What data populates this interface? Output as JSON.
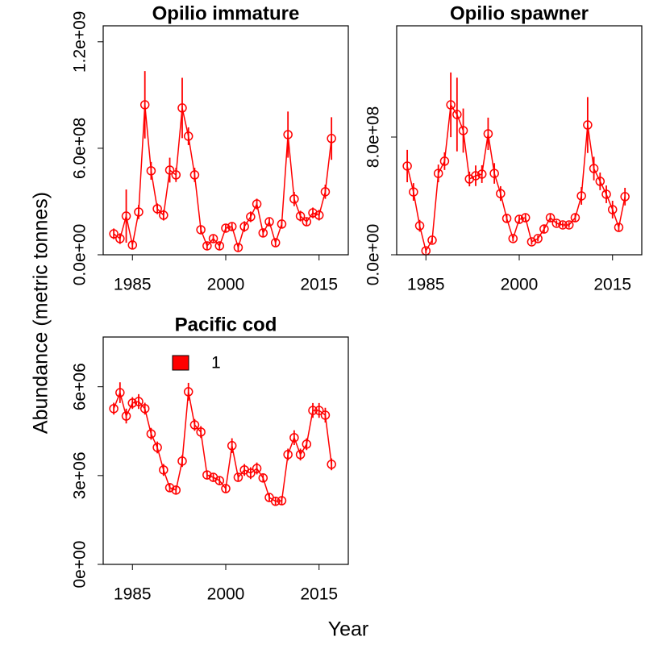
{
  "ylabel": "Abundance (metric tonnes)",
  "xlabel": "Year",
  "chart_data": [
    {
      "type": "line",
      "title": "Opilio immature",
      "x": [
        1982,
        1983,
        1984,
        1985,
        1986,
        1987,
        1988,
        1989,
        1990,
        1991,
        1992,
        1993,
        1994,
        1995,
        1996,
        1997,
        1998,
        1999,
        2000,
        2001,
        2002,
        2003,
        2004,
        2005,
        2006,
        2007,
        2008,
        2009,
        2010,
        2011,
        2012,
        2013,
        2014,
        2015,
        2016,
        2017
      ],
      "xlim": [
        1980.3,
        2019.7
      ],
      "xticks": [
        1985,
        2000,
        2015
      ],
      "ylim": [
        0,
        1290000000
      ],
      "yticks": [
        {
          "value": 0,
          "label": "0.0e+00"
        },
        {
          "value": 600000000,
          "label": "6.0e+08"
        },
        {
          "value": 1200000000,
          "label": "1.2e+09"
        }
      ],
      "series": [
        {
          "color": "#ff0000",
          "values": [
            118000000,
            91000000,
            218000000,
            55000000,
            241000000,
            845000000,
            473000000,
            259000000,
            223000000,
            477000000,
            450000000,
            827000000,
            668000000,
            450000000,
            141000000,
            50000000,
            91000000,
            50000000,
            150000000,
            159000000,
            41000000,
            159000000,
            214000000,
            286000000,
            123000000,
            186000000,
            68000000,
            173000000,
            677000000,
            314000000,
            218000000,
            186000000,
            236000000,
            223000000,
            355000000,
            655000000
          ],
          "errors": [
            30000000,
            30000000,
            150000000,
            20000000,
            40000000,
            190000000,
            50000000,
            30000000,
            30000000,
            70000000,
            40000000,
            170000000,
            50000000,
            40000000,
            20000000,
            20000000,
            20000000,
            20000000,
            20000000,
            20000000,
            20000000,
            30000000,
            30000000,
            30000000,
            20000000,
            20000000,
            20000000,
            20000000,
            130000000,
            40000000,
            30000000,
            20000000,
            30000000,
            30000000,
            40000000,
            120000000
          ]
        }
      ]
    },
    {
      "type": "line",
      "title": "Opilio spawner",
      "x": [
        1982,
        1983,
        1984,
        1985,
        1986,
        1987,
        1988,
        1989,
        1990,
        1991,
        1992,
        1993,
        1994,
        1995,
        1996,
        1997,
        1998,
        1999,
        2000,
        2001,
        2002,
        2003,
        2004,
        2005,
        2006,
        2007,
        2008,
        2009,
        2010,
        2011,
        2012,
        2013,
        2014,
        2015,
        2016,
        2017
      ],
      "xlim": [
        1980.3,
        2019.7
      ],
      "xticks": [
        1985,
        2000,
        2015
      ],
      "ylim": [
        0,
        1556000000
      ],
      "yticks": [
        {
          "value": 0,
          "label": "0.0e+00"
        },
        {
          "value": 800000000,
          "label": "8.0e+08"
        }
      ],
      "series": [
        {
          "color": "#ff0000",
          "values": [
            603000000,
            427000000,
            197000000,
            27000000,
            99000000,
            553000000,
            636000000,
            1019000000,
            953000000,
            844000000,
            515000000,
            537000000,
            548000000,
            822000000,
            553000000,
            416000000,
            247000000,
            110000000,
            241000000,
            252000000,
            88000000,
            110000000,
            175000000,
            252000000,
            214000000,
            203000000,
            203000000,
            252000000,
            400000000,
            882000000,
            586000000,
            499000000,
            411000000,
            307000000,
            186000000,
            395000000
          ],
          "errors": [
            110000000,
            60000000,
            40000000,
            20000000,
            20000000,
            60000000,
            60000000,
            220000000,
            250000000,
            150000000,
            50000000,
            70000000,
            60000000,
            110000000,
            70000000,
            50000000,
            30000000,
            20000000,
            30000000,
            30000000,
            20000000,
            20000000,
            30000000,
            30000000,
            20000000,
            20000000,
            20000000,
            30000000,
            60000000,
            190000000,
            80000000,
            60000000,
            60000000,
            60000000,
            30000000,
            60000000
          ]
        }
      ]
    },
    {
      "type": "line",
      "title": "Pacific cod",
      "legend": "top-left",
      "x": [
        1982,
        1983,
        1984,
        1985,
        1986,
        1987,
        1988,
        1989,
        1990,
        1991,
        1992,
        1993,
        1994,
        1995,
        1996,
        1997,
        1998,
        1999,
        2000,
        2001,
        2002,
        2003,
        2004,
        2005,
        2006,
        2007,
        2008,
        2009,
        2010,
        2011,
        2012,
        2013,
        2014,
        2015,
        2016,
        2017
      ],
      "xlim": [
        1980.3,
        2019.7
      ],
      "xticks": [
        1985,
        2000,
        2015
      ],
      "ylim": [
        0,
        7680000
      ],
      "yticks": [
        {
          "value": 0,
          "label": "0e+00"
        },
        {
          "value": 3000000,
          "label": "3e+06"
        },
        {
          "value": 6000000,
          "label": "6e+06"
        }
      ],
      "series": [
        {
          "name": "1",
          "color": "#ff0000",
          "values": [
            5260000,
            5800000,
            5010000,
            5450000,
            5500000,
            5260000,
            4410000,
            3950000,
            3190000,
            2590000,
            2510000,
            3490000,
            5830000,
            4710000,
            4470000,
            3020000,
            2940000,
            2830000,
            2560000,
            4010000,
            2940000,
            3190000,
            3080000,
            3240000,
            2920000,
            2260000,
            2130000,
            2150000,
            3710000,
            4280000,
            3710000,
            4060000,
            5200000,
            5200000,
            5040000,
            3380000
          ],
          "errors": [
            200000,
            350000,
            250000,
            200000,
            250000,
            200000,
            200000,
            200000,
            200000,
            150000,
            150000,
            200000,
            300000,
            200000,
            200000,
            150000,
            150000,
            150000,
            150000,
            250000,
            150000,
            200000,
            200000,
            200000,
            150000,
            150000,
            150000,
            150000,
            200000,
            250000,
            200000,
            200000,
            250000,
            250000,
            250000,
            200000
          ]
        }
      ]
    }
  ]
}
